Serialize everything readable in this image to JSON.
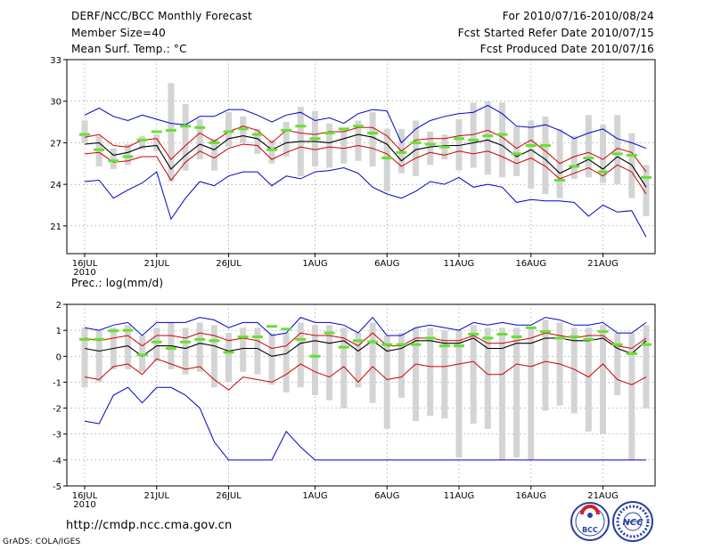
{
  "header": {
    "title": "DERF/NCC/BCC Monthly Forecast",
    "member_size": "Member Size=40",
    "variable": "Mean Surf. Temp.: °C",
    "period": "For 2010/07/16-2010/08/24",
    "started": "Fcst Started Refer Date 2010/07/15",
    "produced": "Fcst Produced Date 2010/07/16"
  },
  "footer": {
    "url": "http://cmdp.ncc.cma.gov.cn",
    "grads": "GrADS: COLA/IGES",
    "logo_bcc": "BCC",
    "logo_ncc": "NCC"
  },
  "colors": {
    "max": "#0000cc",
    "min": "#0000cc",
    "upper": "#cc0000",
    "lower": "#cc0000",
    "mean": "#000000",
    "box": "#d4d4d4",
    "median": "#66e033",
    "grid": "#888888"
  },
  "chart_data": [
    {
      "type": "line",
      "title": "Mean Surf. Temp.: °C",
      "ylim": [
        19,
        33
      ],
      "yticks": [
        21,
        24,
        27,
        30,
        33
      ],
      "xlim": [
        0,
        39
      ],
      "xtick_labels": [
        "16JUL",
        "21JUL",
        "26JUL",
        "1AUG",
        "6AUG",
        "11AUG",
        "16AUG",
        "21AUG"
      ],
      "xtick_days": [
        0,
        5,
        10,
        16,
        21,
        26,
        31,
        36
      ],
      "year_label": "2010",
      "series": [
        {
          "name": "max",
          "values": [
            29.0,
            29.5,
            28.9,
            28.6,
            29.0,
            28.7,
            28.4,
            28.3,
            28.9,
            28.9,
            29.4,
            29.4,
            29.0,
            28.5,
            29.0,
            29.2,
            28.6,
            28.8,
            28.4,
            29.1,
            29.4,
            29.3,
            27.0,
            28.0,
            28.6,
            28.9,
            29.1,
            29.2,
            29.7,
            29.1,
            28.2,
            28.1,
            28.3,
            27.9,
            27.3,
            27.7,
            28.0,
            27.3,
            27.0,
            26.6
          ]
        },
        {
          "name": "upper",
          "values": [
            27.4,
            27.6,
            26.8,
            26.7,
            27.2,
            27.3,
            25.8,
            26.8,
            27.7,
            27.1,
            27.8,
            28.2,
            27.9,
            27.0,
            27.9,
            27.7,
            27.6,
            27.8,
            27.8,
            28.1,
            28.1,
            27.5,
            26.4,
            27.2,
            27.3,
            27.3,
            27.5,
            27.6,
            27.9,
            27.4,
            26.6,
            27.2,
            26.4,
            25.5,
            26.0,
            26.3,
            25.8,
            26.6,
            26.3,
            24.9
          ]
        },
        {
          "name": "mean",
          "values": [
            26.9,
            27.0,
            26.1,
            26.3,
            26.7,
            26.8,
            25.1,
            26.1,
            26.9,
            26.5,
            27.3,
            27.5,
            27.3,
            26.5,
            27.0,
            27.1,
            27.1,
            27.0,
            27.3,
            27.6,
            27.4,
            26.9,
            25.7,
            26.5,
            26.7,
            26.8,
            26.8,
            27.0,
            27.2,
            26.8,
            26.0,
            26.5,
            25.8,
            24.8,
            25.3,
            25.8,
            25.1,
            26.0,
            25.4,
            23.8
          ]
        },
        {
          "name": "lower",
          "values": [
            26.2,
            26.3,
            25.6,
            25.7,
            26.0,
            26.0,
            24.3,
            25.6,
            26.4,
            25.9,
            26.6,
            26.9,
            26.8,
            25.8,
            26.3,
            26.7,
            26.5,
            26.7,
            26.6,
            26.8,
            26.6,
            26.2,
            25.3,
            25.9,
            26.3,
            26.1,
            26.4,
            26.2,
            26.4,
            26.0,
            25.5,
            25.9,
            25.3,
            24.4,
            24.8,
            25.2,
            24.6,
            25.4,
            24.9,
            23.3
          ]
        },
        {
          "name": "min",
          "values": [
            24.2,
            24.3,
            23.0,
            23.6,
            24.1,
            24.9,
            21.5,
            23.0,
            24.2,
            23.9,
            24.6,
            24.9,
            24.9,
            23.9,
            24.6,
            24.4,
            24.9,
            25.0,
            25.2,
            24.8,
            23.8,
            23.3,
            23.0,
            23.5,
            24.2,
            24.0,
            24.5,
            23.8,
            24.0,
            23.8,
            22.7,
            22.9,
            22.8,
            22.8,
            22.7,
            21.7,
            22.5,
            22.0,
            22.1,
            20.2
          ]
        },
        {
          "name": "box_high",
          "values": [
            28.6,
            27.5,
            26.6,
            26.9,
            27.5,
            27.6,
            31.3,
            29.8,
            28.7,
            27.3,
            29.2,
            28.9,
            28.0,
            27.2,
            28.5,
            29.6,
            29.3,
            28.4,
            28.0,
            28.6,
            29.2,
            28.0,
            28.0,
            28.6,
            27.8,
            27.6,
            28.7,
            29.9,
            30.0,
            29.9,
            28.2,
            28.6,
            28.9,
            28.0,
            27.5,
            29.0,
            28.3,
            29.0,
            27.7,
            25.4
          ]
        },
        {
          "name": "box_low",
          "values": [
            27.0,
            25.3,
            25.1,
            25.4,
            26.5,
            26.4,
            24.2,
            25.0,
            25.8,
            25.0,
            26.7,
            27.0,
            26.2,
            25.5,
            26.0,
            24.6,
            25.3,
            25.2,
            25.5,
            25.7,
            25.3,
            23.5,
            24.8,
            24.6,
            25.4,
            25.8,
            25.0,
            25.2,
            24.7,
            24.5,
            24.6,
            23.7,
            23.3,
            23.0,
            24.4,
            24.5,
            24.1,
            24.0,
            23.0,
            21.7
          ]
        },
        {
          "name": "median",
          "values": [
            27.6,
            26.5,
            25.7,
            26.0,
            27.2,
            27.8,
            27.9,
            28.2,
            28.1,
            27.0,
            27.8,
            28.0,
            27.6,
            26.5,
            27.9,
            28.2,
            27.3,
            27.7,
            28.0,
            28.2,
            27.7,
            25.9,
            26.3,
            27.0,
            26.9,
            26.7,
            27.3,
            27.2,
            27.5,
            27.6,
            26.2,
            26.8,
            26.8,
            24.3,
            25.3,
            25.9,
            24.9,
            26.2,
            26.1,
            24.5
          ]
        }
      ]
    },
    {
      "type": "line",
      "title": "Prec.: log(mm/d)",
      "ylim": [
        -5,
        2
      ],
      "yticks": [
        -5,
        -4,
        -3,
        -2,
        -1,
        0,
        1,
        2
      ],
      "xlim": [
        0,
        39
      ],
      "xtick_labels": [
        "16JUL",
        "21JUL",
        "26JUL",
        "1AUG",
        "6AUG",
        "11AUG",
        "16AUG",
        "21AUG"
      ],
      "xtick_days": [
        0,
        5,
        10,
        16,
        21,
        26,
        31,
        36
      ],
      "year_label": "2010",
      "series": [
        {
          "name": "max",
          "values": [
            1.1,
            1.0,
            1.2,
            1.3,
            0.8,
            1.3,
            1.3,
            1.3,
            1.5,
            1.4,
            1.1,
            1.3,
            1.3,
            0.8,
            0.9,
            1.5,
            1.3,
            1.3,
            1.2,
            0.9,
            1.5,
            0.8,
            0.8,
            1.1,
            1.2,
            1.1,
            1.0,
            1.3,
            1.2,
            1.3,
            1.2,
            1.2,
            1.5,
            1.4,
            1.2,
            1.2,
            1.3,
            0.9,
            0.9,
            1.3
          ]
        },
        {
          "name": "upper",
          "values": [
            0.7,
            0.6,
            0.7,
            0.8,
            0.4,
            0.8,
            0.8,
            0.7,
            0.9,
            0.8,
            0.6,
            0.7,
            0.6,
            0.3,
            0.4,
            0.9,
            0.8,
            0.8,
            0.7,
            0.4,
            0.9,
            0.4,
            0.4,
            0.7,
            0.7,
            0.6,
            0.6,
            0.8,
            0.5,
            0.5,
            0.6,
            0.7,
            0.9,
            0.8,
            0.7,
            0.8,
            0.8,
            0.4,
            0.3,
            0.7
          ]
        },
        {
          "name": "mean",
          "values": [
            0.3,
            0.2,
            0.3,
            0.4,
            0.0,
            0.4,
            0.4,
            0.3,
            0.5,
            0.4,
            0.2,
            0.3,
            0.3,
            0.0,
            0.1,
            0.5,
            0.6,
            0.5,
            0.6,
            0.2,
            0.6,
            0.2,
            0.3,
            0.6,
            0.6,
            0.5,
            0.5,
            0.7,
            0.3,
            0.3,
            0.5,
            0.5,
            0.7,
            0.7,
            0.6,
            0.6,
            0.7,
            0.3,
            0.1,
            0.6
          ]
        },
        {
          "name": "lower",
          "values": [
            -0.8,
            -0.9,
            -0.4,
            -0.3,
            -0.7,
            -0.1,
            -0.3,
            -0.5,
            -0.4,
            -0.9,
            -1.3,
            -0.8,
            -0.9,
            -1.0,
            -0.7,
            -0.3,
            -0.6,
            -0.8,
            -0.4,
            -1.0,
            -0.4,
            -0.9,
            -0.8,
            -0.3,
            -0.4,
            -0.4,
            -0.3,
            -0.2,
            -0.7,
            -0.7,
            -0.3,
            -0.4,
            -0.2,
            -0.3,
            -0.5,
            -0.8,
            -0.3,
            -0.9,
            -1.1,
            -0.8
          ]
        },
        {
          "name": "min",
          "values": [
            -2.5,
            -2.6,
            -1.5,
            -1.2,
            -1.8,
            -1.2,
            -1.2,
            -1.5,
            -2.0,
            -3.3,
            -4.0,
            -4.0,
            -4.0,
            -4.0,
            -2.9,
            -3.5,
            -4.0,
            -4.0,
            -4.0,
            -4.0,
            -4.0,
            -4.0,
            -4.0,
            -4.0,
            -4.0,
            -4.0,
            -4.0,
            -4.0,
            -4.0,
            -4.0,
            -4.0,
            -4.0,
            -4.0,
            -4.0,
            -4.0,
            -4.0,
            -4.0,
            -4.0,
            -4.0,
            -4.0
          ]
        },
        {
          "name": "box_high",
          "values": [
            1.1,
            1.0,
            1.1,
            1.2,
            0.8,
            1.1,
            1.3,
            1.1,
            1.3,
            1.2,
            0.9,
            1.1,
            1.1,
            0.9,
            0.9,
            1.3,
            1.2,
            1.2,
            1.1,
            0.9,
            1.3,
            0.8,
            0.9,
            1.1,
            1.1,
            1.0,
            1.0,
            1.2,
            1.1,
            1.1,
            1.1,
            1.1,
            1.4,
            1.3,
            1.1,
            1.1,
            1.2,
            0.9,
            0.9,
            1.2
          ]
        },
        {
          "name": "box_low",
          "values": [
            -1.2,
            -1.0,
            -0.5,
            -0.5,
            -0.6,
            -0.2,
            -0.5,
            -0.7,
            -0.6,
            -1.2,
            -1.0,
            -0.6,
            -0.7,
            -1.1,
            -1.4,
            -1.2,
            -1.5,
            -1.7,
            -2.0,
            -1.2,
            -1.8,
            -2.8,
            -1.6,
            -2.5,
            -2.3,
            -2.4,
            -3.9,
            -2.6,
            -2.8,
            -4.0,
            -3.9,
            -4.0,
            -2.1,
            -1.9,
            -2.2,
            -2.9,
            -3.0,
            -1.5,
            -4.0,
            -2.0
          ]
        },
        {
          "name": "median",
          "values": [
            0.65,
            0.65,
            0.98,
            1.0,
            0.05,
            0.55,
            0.3,
            0.55,
            0.65,
            0.6,
            0.15,
            0.75,
            0.75,
            1.15,
            1.05,
            0.65,
            0.0,
            0.9,
            0.35,
            0.6,
            0.55,
            0.45,
            0.45,
            0.45,
            0.7,
            0.4,
            0.4,
            0.85,
            0.7,
            0.85,
            0.75,
            1.1,
            0.95,
            0.7,
            0.75,
            0.65,
            0.95,
            0.45,
            0.1,
            0.45
          ]
        }
      ]
    }
  ]
}
